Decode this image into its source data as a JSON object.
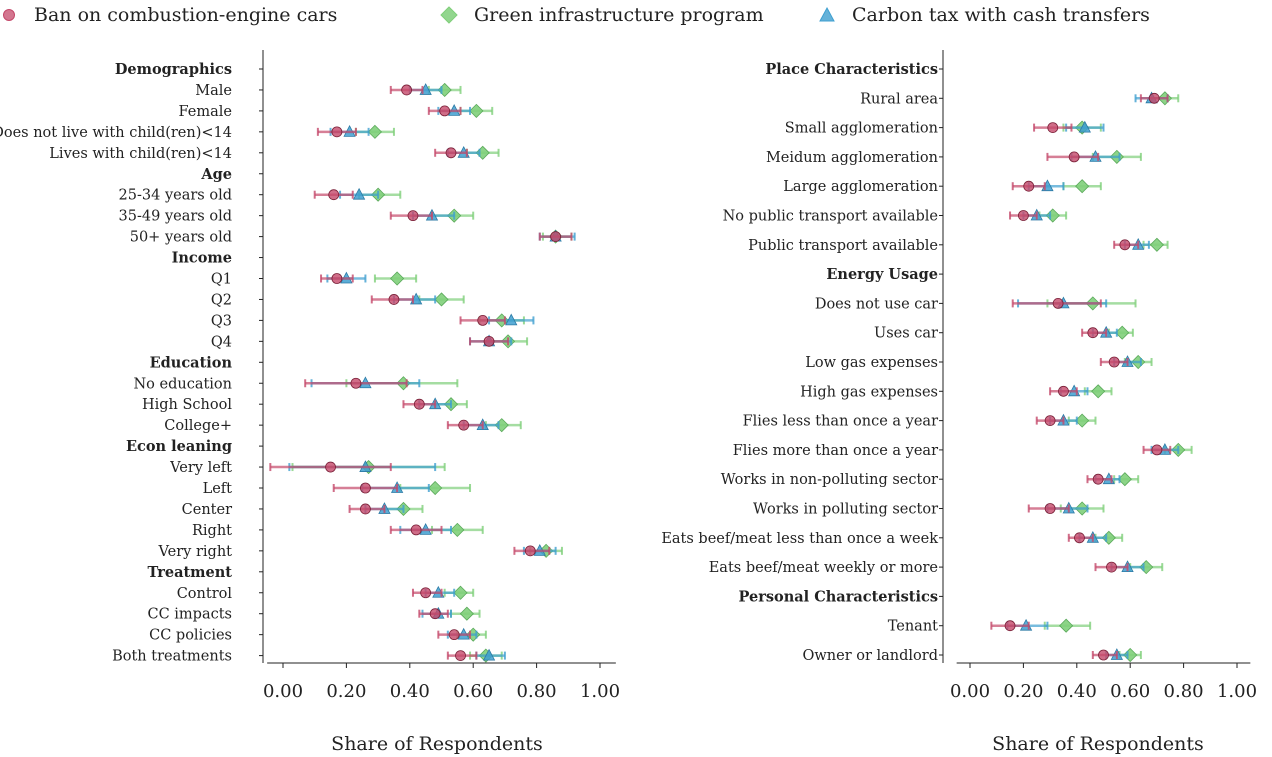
{
  "colors": {
    "ban": "#c4486a",
    "green": "#7fcf7a",
    "tax": "#3e9fd0",
    "axis": "#222222"
  },
  "legend": [
    {
      "key": "ban",
      "label": "Ban on combustion-engine cars",
      "marker": "circle-icon"
    },
    {
      "key": "green",
      "label": "Green infrastructure program",
      "marker": "diamond-icon"
    },
    {
      "key": "tax",
      "label": "Carbon tax with cash transfers",
      "marker": "triangle-icon"
    }
  ],
  "chart_data": [
    {
      "type": "scatter",
      "xlabel": "Share of Respondents",
      "xlim": [
        -0.05,
        1.05
      ],
      "xticks": [
        "0.00",
        "0.20",
        "0.40",
        "0.60",
        "0.80",
        "1.00"
      ],
      "rows": [
        {
          "label": "Demographics",
          "header": true
        },
        {
          "label": "Male",
          "ban": [
            0.39,
            0.34,
            0.44
          ],
          "green": [
            0.51,
            0.46,
            0.56
          ],
          "tax": [
            0.45,
            0.4,
            0.5
          ]
        },
        {
          "label": "Female",
          "ban": [
            0.51,
            0.46,
            0.56
          ],
          "green": [
            0.61,
            0.56,
            0.66
          ],
          "tax": [
            0.54,
            0.49,
            0.59
          ]
        },
        {
          "label": "Does not live with child(ren)<14",
          "ban": [
            0.17,
            0.11,
            0.23
          ],
          "green": [
            0.29,
            0.23,
            0.35
          ],
          "tax": [
            0.21,
            0.15,
            0.27
          ]
        },
        {
          "label": "Lives with child(ren)<14",
          "ban": [
            0.53,
            0.48,
            0.58
          ],
          "green": [
            0.63,
            0.58,
            0.68
          ],
          "tax": [
            0.57,
            0.52,
            0.62
          ]
        },
        {
          "label": "Age",
          "header": true
        },
        {
          "label": "25-34 years old",
          "ban": [
            0.16,
            0.1,
            0.22
          ],
          "green": [
            0.3,
            0.24,
            0.37
          ],
          "tax": [
            0.24,
            0.18,
            0.3
          ]
        },
        {
          "label": "35-49 years old",
          "ban": [
            0.41,
            0.34,
            0.47
          ],
          "green": [
            0.54,
            0.47,
            0.6
          ],
          "tax": [
            0.47,
            0.41,
            0.54
          ]
        },
        {
          "label": "50+ years old",
          "ban": [
            0.86,
            0.81,
            0.91
          ],
          "green": [
            0.86,
            0.82,
            0.91
          ],
          "tax": [
            0.86,
            0.81,
            0.92
          ]
        },
        {
          "label": "Income",
          "header": true
        },
        {
          "label": "Q1",
          "ban": [
            0.17,
            0.12,
            0.22
          ],
          "green": [
            0.36,
            0.29,
            0.42
          ],
          "tax": [
            0.2,
            0.14,
            0.26
          ]
        },
        {
          "label": "Q2",
          "ban": [
            0.35,
            0.28,
            0.41
          ],
          "green": [
            0.5,
            0.43,
            0.57
          ],
          "tax": [
            0.42,
            0.35,
            0.48
          ]
        },
        {
          "label": "Q3",
          "ban": [
            0.63,
            0.56,
            0.7
          ],
          "green": [
            0.69,
            0.62,
            0.76
          ],
          "tax": [
            0.72,
            0.65,
            0.79
          ]
        },
        {
          "label": "Q4",
          "ban": [
            0.65,
            0.59,
            0.71
          ],
          "green": [
            0.71,
            0.65,
            0.77
          ],
          "tax": [
            0.65,
            0.59,
            0.72
          ]
        },
        {
          "label": "Education",
          "header": true
        },
        {
          "label": "No education",
          "ban": [
            0.23,
            0.07,
            0.39
          ],
          "green": [
            0.38,
            0.2,
            0.55
          ],
          "tax": [
            0.26,
            0.09,
            0.43
          ]
        },
        {
          "label": "High School",
          "ban": [
            0.43,
            0.38,
            0.48
          ],
          "green": [
            0.53,
            0.48,
            0.58
          ],
          "tax": [
            0.48,
            0.43,
            0.53
          ]
        },
        {
          "label": "College+",
          "ban": [
            0.57,
            0.52,
            0.63
          ],
          "green": [
            0.69,
            0.64,
            0.75
          ],
          "tax": [
            0.63,
            0.57,
            0.68
          ]
        },
        {
          "label": "Econ leaning",
          "header": true
        },
        {
          "label": "Very left",
          "ban": [
            0.15,
            -0.04,
            0.34
          ],
          "green": [
            0.27,
            0.03,
            0.51
          ],
          "tax": [
            0.26,
            0.02,
            0.48
          ]
        },
        {
          "label": "Left",
          "ban": [
            0.26,
            0.16,
            0.36
          ],
          "green": [
            0.48,
            0.37,
            0.59
          ],
          "tax": [
            0.36,
            0.25,
            0.46
          ]
        },
        {
          "label": "Center",
          "ban": [
            0.26,
            0.21,
            0.32
          ],
          "green": [
            0.38,
            0.32,
            0.44
          ],
          "tax": [
            0.32,
            0.26,
            0.38
          ]
        },
        {
          "label": "Right",
          "ban": [
            0.42,
            0.34,
            0.5
          ],
          "green": [
            0.55,
            0.47,
            0.63
          ],
          "tax": [
            0.45,
            0.37,
            0.53
          ]
        },
        {
          "label": "Very right",
          "ban": [
            0.78,
            0.73,
            0.84
          ],
          "green": [
            0.83,
            0.78,
            0.88
          ],
          "tax": [
            0.81,
            0.76,
            0.86
          ]
        },
        {
          "label": "Treatment",
          "header": true
        },
        {
          "label": "Control",
          "ban": [
            0.45,
            0.41,
            0.5
          ],
          "green": [
            0.56,
            0.51,
            0.6
          ],
          "tax": [
            0.49,
            0.45,
            0.54
          ]
        },
        {
          "label": "CC impacts",
          "ban": [
            0.48,
            0.43,
            0.52
          ],
          "green": [
            0.58,
            0.53,
            0.62
          ],
          "tax": [
            0.49,
            0.44,
            0.53
          ]
        },
        {
          "label": "CC policies",
          "ban": [
            0.54,
            0.49,
            0.59
          ],
          "green": [
            0.6,
            0.55,
            0.64
          ],
          "tax": [
            0.57,
            0.52,
            0.61
          ]
        },
        {
          "label": "Both treatments",
          "ban": [
            0.56,
            0.52,
            0.61
          ],
          "green": [
            0.64,
            0.59,
            0.69
          ],
          "tax": [
            0.65,
            0.61,
            0.7
          ]
        }
      ]
    },
    {
      "type": "scatter",
      "xlabel": "Share of Respondents",
      "xlim": [
        -0.05,
        1.05
      ],
      "xticks": [
        "0.00",
        "0.20",
        "0.40",
        "0.60",
        "0.80",
        "1.00"
      ],
      "rows": [
        {
          "label": "Place Characteristics",
          "header": true
        },
        {
          "label": "Rural area",
          "ban": [
            0.69,
            0.64,
            0.74
          ],
          "green": [
            0.73,
            0.68,
            0.78
          ],
          "tax": [
            0.68,
            0.62,
            0.74
          ]
        },
        {
          "label": "Small agglomeration",
          "ban": [
            0.31,
            0.24,
            0.38
          ],
          "green": [
            0.42,
            0.35,
            0.49
          ],
          "tax": [
            0.43,
            0.36,
            0.5
          ]
        },
        {
          "label": "Meidum agglomeration",
          "ban": [
            0.39,
            0.29,
            0.48
          ],
          "green": [
            0.55,
            0.46,
            0.64
          ],
          "tax": [
            0.47,
            0.38,
            0.56
          ]
        },
        {
          "label": "Large agglomeration",
          "ban": [
            0.22,
            0.16,
            0.28
          ],
          "green": [
            0.42,
            0.35,
            0.49
          ],
          "tax": [
            0.29,
            0.22,
            0.35
          ]
        },
        {
          "label": "No public transport available",
          "ban": [
            0.2,
            0.15,
            0.25
          ],
          "green": [
            0.31,
            0.26,
            0.36
          ],
          "tax": [
            0.25,
            0.2,
            0.3
          ]
        },
        {
          "label": "Public transport available",
          "ban": [
            0.58,
            0.54,
            0.63
          ],
          "green": [
            0.7,
            0.65,
            0.74
          ],
          "tax": [
            0.63,
            0.58,
            0.67
          ]
        },
        {
          "label": "Energy Usage",
          "header": true
        },
        {
          "label": "Does not use car",
          "ban": [
            0.33,
            0.16,
            0.49
          ],
          "green": [
            0.46,
            0.29,
            0.62
          ],
          "tax": [
            0.35,
            0.18,
            0.51
          ]
        },
        {
          "label": "Uses car",
          "ban": [
            0.46,
            0.42,
            0.51
          ],
          "green": [
            0.57,
            0.52,
            0.61
          ],
          "tax": [
            0.51,
            0.46,
            0.55
          ]
        },
        {
          "label": "Low gas expenses",
          "ban": [
            0.54,
            0.49,
            0.59
          ],
          "green": [
            0.63,
            0.58,
            0.68
          ],
          "tax": [
            0.59,
            0.54,
            0.64
          ]
        },
        {
          "label": "High gas expenses",
          "ban": [
            0.35,
            0.3,
            0.4
          ],
          "green": [
            0.48,
            0.43,
            0.53
          ],
          "tax": [
            0.39,
            0.34,
            0.44
          ]
        },
        {
          "label": "Flies less than once a year",
          "ban": [
            0.3,
            0.25,
            0.35
          ],
          "green": [
            0.42,
            0.37,
            0.47
          ],
          "tax": [
            0.35,
            0.3,
            0.4
          ]
        },
        {
          "label": "Flies more than once a year",
          "ban": [
            0.7,
            0.65,
            0.75
          ],
          "green": [
            0.78,
            0.73,
            0.83
          ],
          "tax": [
            0.73,
            0.68,
            0.78
          ]
        },
        {
          "label": "Works in non-polluting sector",
          "ban": [
            0.48,
            0.44,
            0.53
          ],
          "green": [
            0.58,
            0.54,
            0.63
          ],
          "tax": [
            0.52,
            0.47,
            0.56
          ]
        },
        {
          "label": "Works in polluting sector",
          "ban": [
            0.3,
            0.22,
            0.37
          ],
          "green": [
            0.42,
            0.34,
            0.5
          ],
          "tax": [
            0.37,
            0.29,
            0.44
          ]
        },
        {
          "label": "Eats beef/meat less than once a week",
          "ban": [
            0.41,
            0.37,
            0.46
          ],
          "green": [
            0.52,
            0.47,
            0.57
          ],
          "tax": [
            0.46,
            0.41,
            0.51
          ]
        },
        {
          "label": "Eats beef/meat weekly or more",
          "ban": [
            0.53,
            0.47,
            0.59
          ],
          "green": [
            0.66,
            0.6,
            0.72
          ],
          "tax": [
            0.59,
            0.53,
            0.65
          ]
        },
        {
          "label": "Personal Characteristics",
          "header": true
        },
        {
          "label": "Tenant",
          "ban": [
            0.15,
            0.08,
            0.22
          ],
          "green": [
            0.36,
            0.28,
            0.45
          ],
          "tax": [
            0.21,
            0.14,
            0.29
          ]
        },
        {
          "label": "Owner or landlord",
          "ban": [
            0.5,
            0.46,
            0.55
          ],
          "green": [
            0.6,
            0.56,
            0.64
          ],
          "tax": [
            0.55,
            0.51,
            0.59
          ]
        }
      ]
    }
  ]
}
